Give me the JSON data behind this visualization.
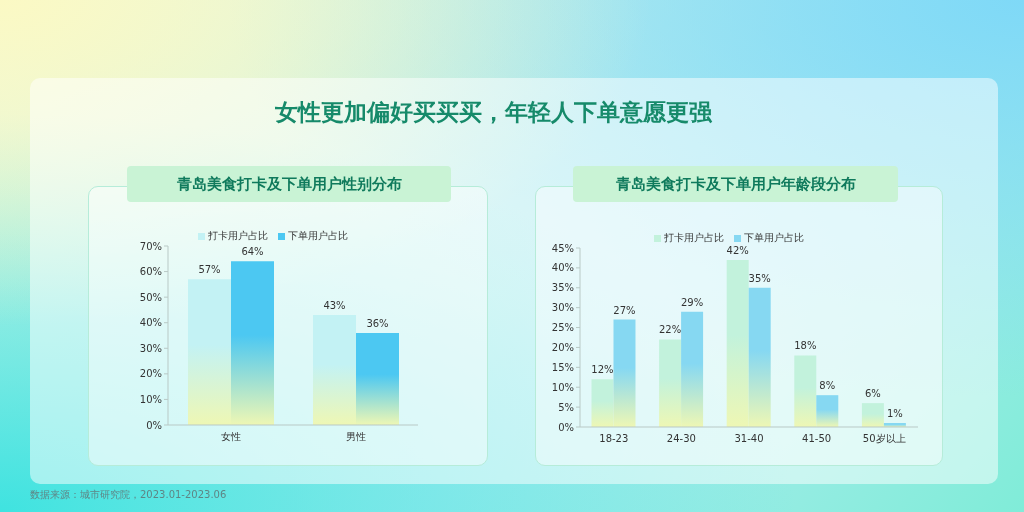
{
  "chart_data": [
    {
      "type": "bar",
      "title": "青岛美食打卡及下单用户性别分布",
      "categories": [
        "女性",
        "男性"
      ],
      "series": [
        {
          "name": "打卡用户占比",
          "color": "#c3f2f4",
          "values": [
            57,
            43
          ],
          "value_labels": [
            "57%",
            "43%"
          ]
        },
        {
          "name": "下单用户占比",
          "color": "#4cc8f2",
          "values": [
            64,
            36
          ],
          "value_labels": [
            "64%",
            "36%"
          ]
        }
      ],
      "ylim": [
        0,
        70
      ],
      "yticks": [
        {
          "value": 0,
          "label": "0%"
        },
        {
          "value": 10,
          "label": "10%"
        },
        {
          "value": 20,
          "label": "20%"
        },
        {
          "value": 30,
          "label": "30%"
        },
        {
          "value": 40,
          "label": "40%"
        },
        {
          "value": 50,
          "label": "50%"
        },
        {
          "value": 60,
          "label": "60%"
        },
        {
          "value": 70,
          "label": "70%"
        }
      ],
      "legend": "top",
      "annotations": [
        "女性更加偏好买买买，年轻人下单意愿更强",
        "数据来源：城市研究院，2023.01-2023.06"
      ]
    },
    {
      "type": "bar",
      "title": "青岛美食打卡及下单用户年龄段分布",
      "categories": [
        "18-23",
        "24-30",
        "31-40",
        "41-50",
        "50岁以上"
      ],
      "series": [
        {
          "name": "打卡用户占比",
          "color": "#c2f2dc",
          "values": [
            12,
            22,
            42,
            18,
            6
          ],
          "value_labels": [
            "12%",
            "22%",
            "42%",
            "18%",
            "6%"
          ]
        },
        {
          "name": "下单用户占比",
          "color": "#86d8f2",
          "values": [
            27,
            29,
            35,
            8,
            1
          ],
          "value_labels": [
            "27%",
            "29%",
            "35%",
            "8%",
            "1%"
          ]
        }
      ],
      "ylim": [
        0,
        45
      ],
      "yticks": [
        {
          "value": 0,
          "label": "0%"
        },
        {
          "value": 5,
          "label": "5%"
        },
        {
          "value": 10,
          "label": "10%"
        },
        {
          "value": 15,
          "label": "15%"
        },
        {
          "value": 20,
          "label": "20%"
        },
        {
          "value": 25,
          "label": "25%"
        },
        {
          "value": 30,
          "label": "30%"
        },
        {
          "value": 35,
          "label": "35%"
        },
        {
          "value": 40,
          "label": "40%"
        },
        {
          "value": 45,
          "label": "45%"
        }
      ],
      "legend": "top"
    }
  ]
}
